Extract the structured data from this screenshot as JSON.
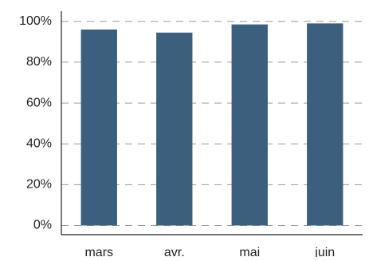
{
  "chart_data": {
    "type": "bar",
    "categories": [
      "mars",
      "avr.",
      "mai",
      "juin"
    ],
    "values": [
      96,
      94.5,
      98.5,
      99
    ],
    "ylim": [
      -4.5,
      105
    ],
    "yticks": [
      0,
      20,
      40,
      60,
      80,
      100
    ],
    "ytick_labels": [
      "0%",
      "20%",
      "40%",
      "60%",
      "80%",
      "100%"
    ],
    "grid": true,
    "grid_style": "dashed-horizontal",
    "bar_color": "#3b5f7d",
    "legend": "none"
  }
}
